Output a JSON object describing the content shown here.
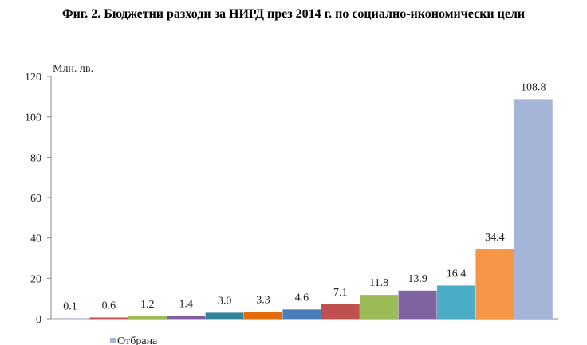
{
  "chart_data": {
    "type": "bar",
    "title": "Фиг. 2. Бюджетни разходи за НИРД през 2014 г. по социално-икономически цели",
    "ylabel": "Млн. лв.",
    "ylim": [
      0,
      120
    ],
    "yticks": [
      0,
      20,
      40,
      60,
      80,
      100,
      120
    ],
    "grid": false,
    "legend_position": "bottom-left",
    "legend_entries": [
      "Отбрана"
    ],
    "series": [
      {
        "name": "Отбрана",
        "value": 0.1,
        "label": "0.1",
        "color": "#a5b5d7"
      },
      {
        "value": 0.6,
        "label": "0.6",
        "color": "#c0504d"
      },
      {
        "value": 1.2,
        "label": "1.2",
        "color": "#9bbb59"
      },
      {
        "value": 1.4,
        "label": "1.4",
        "color": "#7f5fa2"
      },
      {
        "value": 3.0,
        "label": "3.0",
        "color": "#31849b"
      },
      {
        "value": 3.3,
        "label": "3.3",
        "color": "#e46c0a"
      },
      {
        "value": 4.6,
        "label": "4.6",
        "color": "#4a7ebb"
      },
      {
        "value": 7.1,
        "label": "7.1",
        "color": "#c0504d"
      },
      {
        "value": 11.8,
        "label": "11.8",
        "color": "#9bbb59"
      },
      {
        "value": 13.9,
        "label": "13.9",
        "color": "#8064a2"
      },
      {
        "value": 16.4,
        "label": "16.4",
        "color": "#4bacc6"
      },
      {
        "value": 34.4,
        "label": "34.4",
        "color": "#f79646"
      },
      {
        "value": 108.8,
        "label": "108.8",
        "color": "#a5b5d7"
      }
    ]
  }
}
